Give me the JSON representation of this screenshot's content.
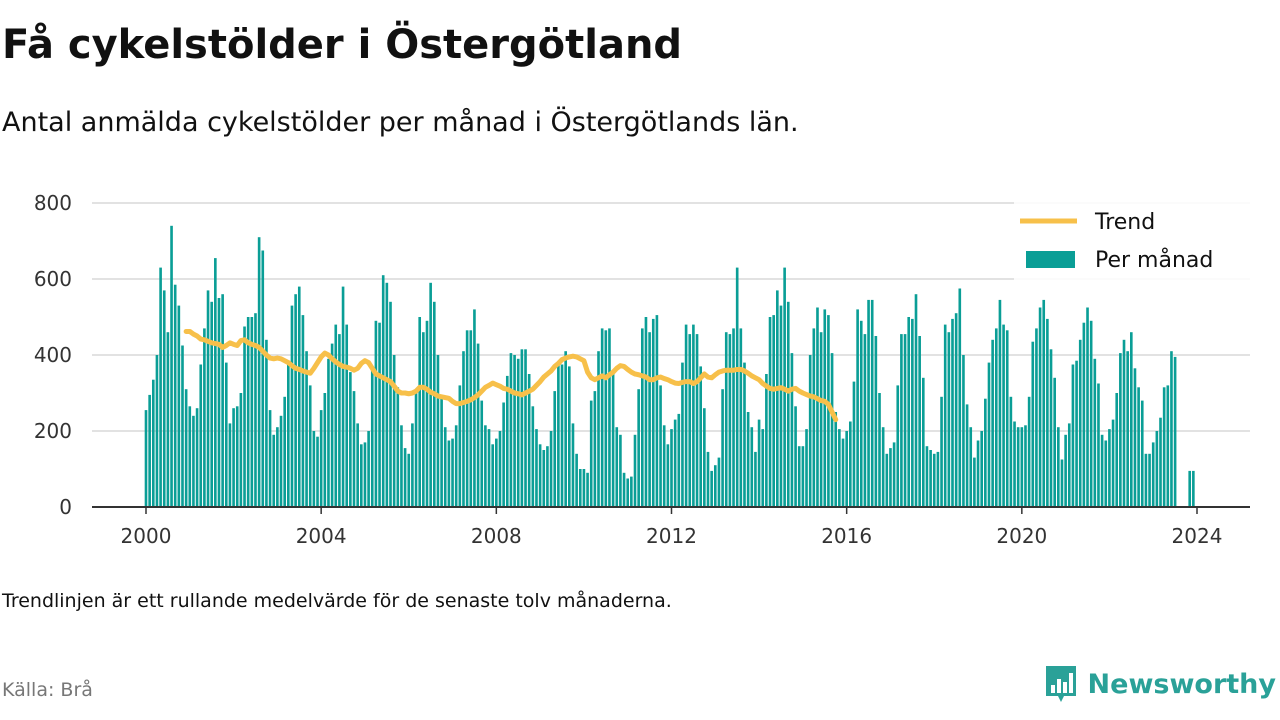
{
  "header": {
    "title": "Få cykelstölder i Östergötland",
    "subtitle": "Antal anmälda cykelstölder per månad i Östergötlands län."
  },
  "footer": {
    "note": "Trendlinjen är ett rullande medelvärde för de senaste tolv månaderna.",
    "source": "Källa: Brå",
    "brand": "Newsworthy"
  },
  "colors": {
    "bars": "#0a9e96",
    "trend": "#f7c04a",
    "grid": "#d9d9d9",
    "axis": "#333333",
    "brand": "#2aa198"
  },
  "icons": {
    "brand_logo": "bar-chart-badge-icon"
  },
  "chart_data": {
    "type": "bar",
    "x_start": "2000-01",
    "x_end": "2024-01",
    "x_ticks": [
      "2000",
      "2004",
      "2008",
      "2012",
      "2016",
      "2020",
      "2024"
    ],
    "y_ticks": [
      "0",
      "200",
      "400",
      "600",
      "800"
    ],
    "ylim": [
      0,
      800
    ],
    "grid": true,
    "legend_position": "top-right",
    "series": [
      {
        "name": "Per månad",
        "kind": "bar",
        "start": "2000-01",
        "values": [
          255,
          295,
          335,
          400,
          630,
          570,
          460,
          740,
          585,
          530,
          425,
          310,
          265,
          240,
          260,
          375,
          470,
          570,
          540,
          655,
          550,
          560,
          380,
          220,
          260,
          265,
          300,
          475,
          500,
          500,
          510,
          710,
          675,
          440,
          255,
          190,
          210,
          240,
          290,
          385,
          530,
          560,
          580,
          505,
          410,
          320,
          200,
          185,
          255,
          300,
          390,
          430,
          480,
          455,
          580,
          480,
          355,
          305,
          220,
          165,
          170,
          200,
          370,
          490,
          485,
          610,
          590,
          540,
          400,
          315,
          215,
          155,
          140,
          220,
          300,
          500,
          460,
          490,
          590,
          540,
          400,
          290,
          210,
          175,
          180,
          215,
          320,
          410,
          465,
          465,
          520,
          430,
          280,
          215,
          205,
          165,
          180,
          200,
          275,
          345,
          405,
          400,
          390,
          415,
          415,
          350,
          265,
          205,
          165,
          150,
          160,
          200,
          305,
          375,
          375,
          410,
          370,
          220,
          140,
          100,
          100,
          90,
          280,
          305,
          410,
          470,
          465,
          470,
          350,
          210,
          190,
          90,
          75,
          80,
          190,
          310,
          470,
          500,
          460,
          495,
          505,
          320,
          215,
          165,
          205,
          230,
          245,
          380,
          480,
          455,
          480,
          455,
          370,
          260,
          145,
          95,
          110,
          130,
          310,
          460,
          455,
          470,
          630,
          470,
          380,
          250,
          210,
          145,
          230,
          205,
          350,
          500,
          505,
          570,
          530,
          630,
          540,
          405,
          265,
          160,
          160,
          205,
          400,
          470,
          525,
          460,
          520,
          505,
          405,
          250,
          205,
          180,
          200,
          225,
          330,
          520,
          490,
          455,
          545,
          545,
          450,
          300,
          210,
          140,
          155,
          170,
          320,
          455,
          455,
          500,
          495,
          560,
          450,
          340,
          160,
          150,
          140,
          145,
          290,
          480,
          460,
          495,
          510,
          575,
          400,
          270,
          210,
          130,
          175,
          200,
          285,
          380,
          440,
          470,
          545,
          480,
          465,
          290,
          225,
          210,
          210,
          215,
          290,
          435,
          470,
          525,
          545,
          495,
          415,
          340,
          210,
          125,
          190,
          220,
          375,
          385,
          440,
          485,
          525,
          490,
          390,
          325,
          190,
          175,
          205,
          230,
          300,
          405,
          440,
          410,
          460,
          365,
          315,
          280,
          140,
          140,
          170,
          200,
          235,
          315,
          320,
          410,
          395,
          0,
          0,
          0,
          95,
          95
        ]
      },
      {
        "name": "Trend",
        "kind": "line",
        "start": "2000-12",
        "values": [
          462,
          462,
          455,
          450,
          442,
          440,
          436,
          432,
          430,
          428,
          420,
          425,
          432,
          428,
          425,
          438,
          440,
          432,
          428,
          425,
          420,
          410,
          400,
          392,
          390,
          392,
          390,
          385,
          380,
          372,
          365,
          362,
          358,
          355,
          352,
          365,
          380,
          395,
          405,
          400,
          390,
          382,
          375,
          370,
          368,
          365,
          360,
          365,
          378,
          385,
          380,
          365,
          350,
          345,
          340,
          335,
          330,
          318,
          305,
          300,
          300,
          298,
          300,
          305,
          315,
          315,
          310,
          302,
          298,
          292,
          290,
          288,
          286,
          278,
          272,
          272,
          275,
          278,
          282,
          288,
          295,
          305,
          315,
          320,
          326,
          322,
          318,
          312,
          310,
          305,
          300,
          298,
          295,
          300,
          305,
          310,
          320,
          330,
          342,
          350,
          358,
          370,
          378,
          388,
          392,
          395,
          397,
          395,
          390,
          385,
          355,
          340,
          335,
          340,
          345,
          340,
          348,
          355,
          365,
          372,
          370,
          362,
          355,
          350,
          348,
          345,
          342,
          335,
          335,
          340,
          342,
          338,
          335,
          330,
          326,
          325,
          328,
          330,
          330,
          325,
          330,
          340,
          350,
          342,
          340,
          348,
          355,
          358,
          360,
          360,
          360,
          362,
          362,
          358,
          352,
          345,
          340,
          335,
          325,
          318,
          312,
          310,
          312,
          314,
          310,
          305,
          310,
          312,
          305,
          300,
          296,
          292,
          290,
          285,
          280,
          278,
          270,
          250,
          230
        ]
      }
    ]
  }
}
